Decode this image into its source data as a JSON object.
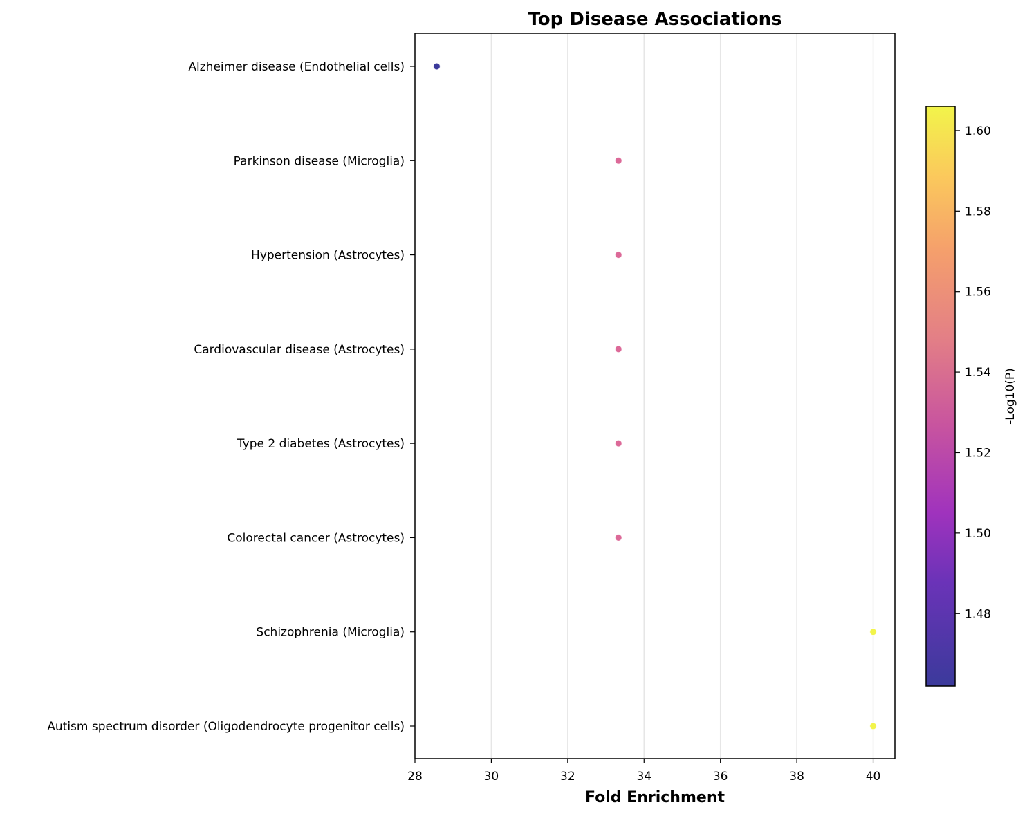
{
  "chart_data": {
    "type": "scatter",
    "title": "Top Disease Associations",
    "xlabel": "Fold Enrichment",
    "ylabel": "",
    "xlim": [
      28,
      40.57
    ],
    "xticks": [
      "28",
      "30",
      "32",
      "34",
      "36",
      "38",
      "40"
    ],
    "grid": "vertical",
    "points": [
      {
        "category": "Alzheimer disease (Endothelial cells)",
        "x": 28.57,
        "color_value": 1.462
      },
      {
        "category": "Parkinson disease (Microglia)",
        "x": 33.33,
        "color_value": 1.526
      },
      {
        "category": "Hypertension (Astrocytes)",
        "x": 33.33,
        "color_value": 1.526
      },
      {
        "category": "Cardiovascular disease (Astrocytes)",
        "x": 33.33,
        "color_value": 1.526
      },
      {
        "category": "Type 2 diabetes (Astrocytes)",
        "x": 33.33,
        "color_value": 1.526
      },
      {
        "category": "Colorectal cancer (Astrocytes)",
        "x": 33.33,
        "color_value": 1.526
      },
      {
        "category": "Schizophrenia (Microglia)",
        "x": 40.0,
        "color_value": 1.606
      },
      {
        "category": "Autism spectrum disorder (Oligodendrocyte progenitor cells)",
        "x": 40.0,
        "color_value": 1.606
      }
    ],
    "colorbar": {
      "label": "-Log10(P)",
      "range": [
        1.462,
        1.606
      ],
      "ticks": [
        "1.48",
        "1.50",
        "1.52",
        "1.54",
        "1.56",
        "1.58",
        "1.60"
      ],
      "colormap": "plasma",
      "colors": [
        "#3b3a9b",
        "#8a2dbf",
        "#c54db2",
        "#e8778b",
        "#f9a063",
        "#fbc95c",
        "#f2f44a"
      ]
    }
  }
}
